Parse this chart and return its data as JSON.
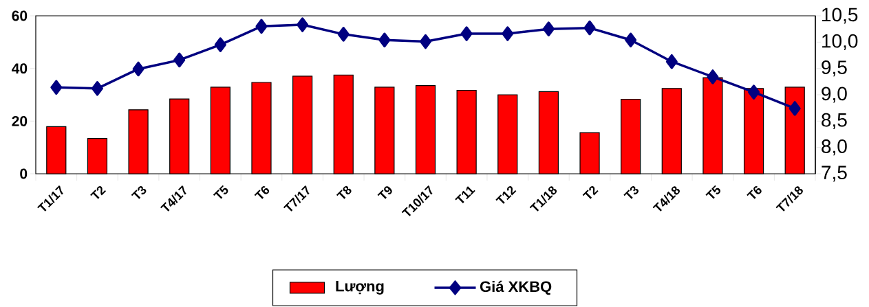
{
  "chart_data": {
    "type": "bar",
    "categories": [
      "T1/17",
      "T2",
      "T3",
      "T4/17",
      "T5",
      "T6",
      "T7/17",
      "T8",
      "T9",
      "T10/17",
      "T11",
      "T12",
      "T1/18",
      "T2",
      "T3",
      "T4/18",
      "T5",
      "T6",
      "T7/18"
    ],
    "series": [
      {
        "name": "Lượng",
        "color": "#ff0000",
        "values": [
          17.9,
          13.4,
          24.3,
          28.4,
          32.9,
          34.7,
          37.1,
          37.5,
          32.9,
          33.5,
          31.7,
          30.0,
          31.2,
          15.6,
          28.3,
          32.4,
          36.5,
          32.4,
          32.9
        ]
      },
      {
        "name": "Giá XKBQ",
        "type": "line",
        "axis": "y2",
        "color": "#000080",
        "marker": "diamond",
        "values": [
          9.14,
          9.12,
          9.49,
          9.66,
          9.95,
          10.3,
          10.33,
          10.15,
          10.04,
          10.01,
          10.16,
          10.16,
          10.25,
          10.27,
          10.04,
          9.63,
          9.34,
          9.05,
          8.74
        ]
      }
    ],
    "ylim": [
      0,
      60
    ],
    "yticks": [
      0,
      20,
      40,
      60
    ],
    "y2lim": [
      7.5,
      10.5
    ],
    "y2ticks": [
      {
        "value": 7.5,
        "label": "7,5"
      },
      {
        "value": 8.0,
        "label": "8,0"
      },
      {
        "value": 8.5,
        "label": "8,5"
      },
      {
        "value": 9.0,
        "label": "9,0"
      },
      {
        "value": 9.5,
        "label": "9,5"
      },
      {
        "value": 10.0,
        "label": "10,0"
      },
      {
        "value": 10.5,
        "label": "10,5"
      }
    ],
    "legend": "bottom",
    "grid": false
  }
}
